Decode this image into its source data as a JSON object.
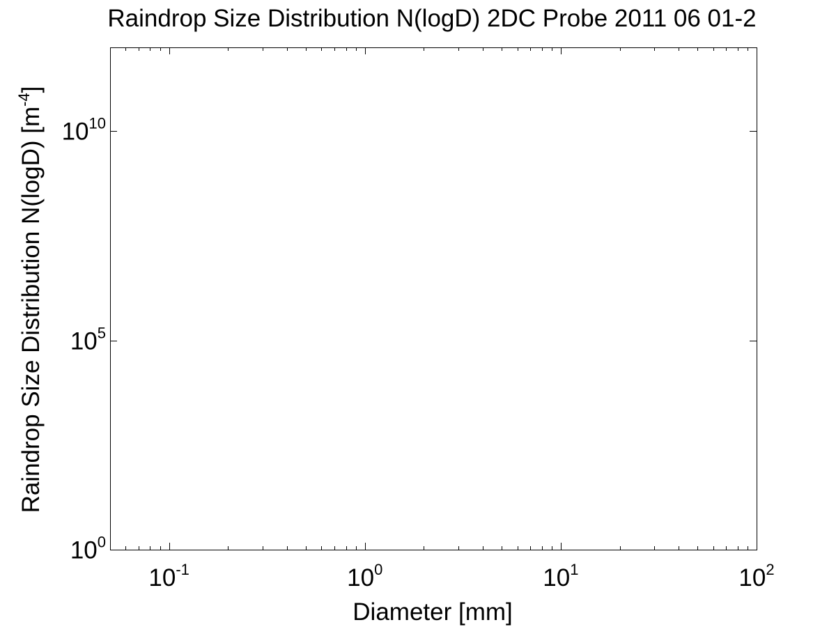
{
  "chart_data": {
    "type": "line",
    "title": "Raindrop Size Distribution N(logD) 2DC Probe 2011 06 01-2",
    "xlabel": "Diameter [mm]",
    "ylabel": {
      "text": "Raindrop Size Distribution N(logD) [m",
      "superscript": "-4",
      "suffix": "]"
    },
    "x_scale": "log",
    "y_scale": "log",
    "xlim": [
      0.05,
      100
    ],
    "ylim": [
      1,
      1000000000000.0
    ],
    "x_major_ticks": [
      {
        "value": 0.1,
        "base": "10",
        "exponent": "-1"
      },
      {
        "value": 1,
        "base": "10",
        "exponent": "0"
      },
      {
        "value": 10,
        "base": "10",
        "exponent": "1"
      },
      {
        "value": 100,
        "base": "10",
        "exponent": "2"
      }
    ],
    "y_major_ticks": [
      {
        "value": 1,
        "base": "10",
        "exponent": "0"
      },
      {
        "value": 100000,
        "base": "10",
        "exponent": "5"
      },
      {
        "value": 10000000000,
        "base": "10",
        "exponent": "10"
      }
    ],
    "grid": false,
    "series": []
  }
}
